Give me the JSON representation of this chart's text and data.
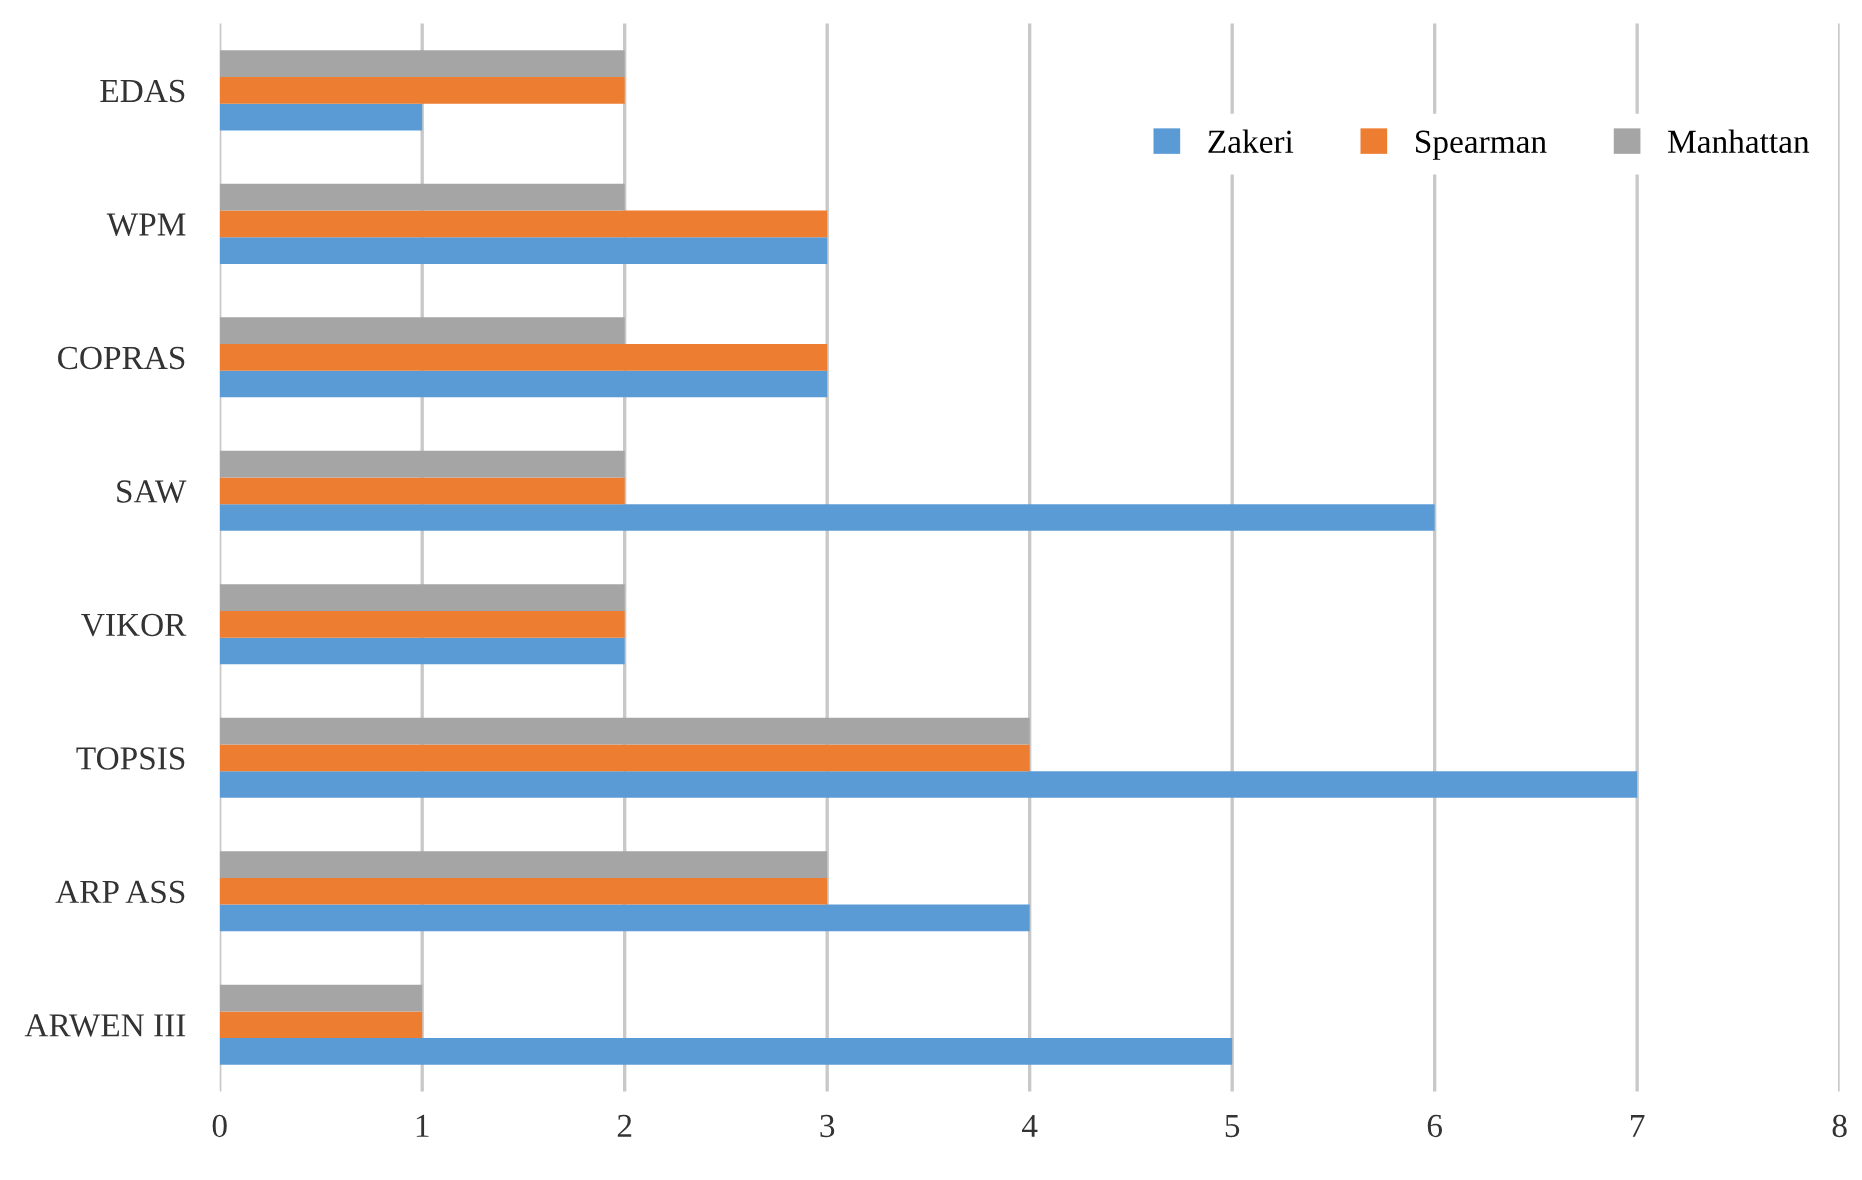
{
  "chart_data": {
    "type": "bar",
    "orientation": "horizontal",
    "categories": [
      "EDAS",
      "WPM",
      "COPRAS",
      "SAW",
      "VIKOR",
      "TOPSIS",
      "ARP ASS",
      "ARWEN III"
    ],
    "series": [
      {
        "name": "Zakeri",
        "color": "#5b9bd5",
        "values": [
          1,
          3,
          3,
          6,
          2,
          7,
          4,
          5
        ]
      },
      {
        "name": "Spearman",
        "color": "#ed7d31",
        "values": [
          2,
          3,
          3,
          2,
          2,
          4,
          3,
          1
        ]
      },
      {
        "name": "Manhattan",
        "color": "#a5a5a5",
        "values": [
          2,
          2,
          2,
          2,
          2,
          4,
          3,
          1
        ]
      }
    ],
    "xlim": [
      0,
      8
    ],
    "xticks": [
      0,
      1,
      2,
      3,
      4,
      5,
      6,
      7,
      8
    ],
    "grid": "x",
    "legend": "top right"
  }
}
